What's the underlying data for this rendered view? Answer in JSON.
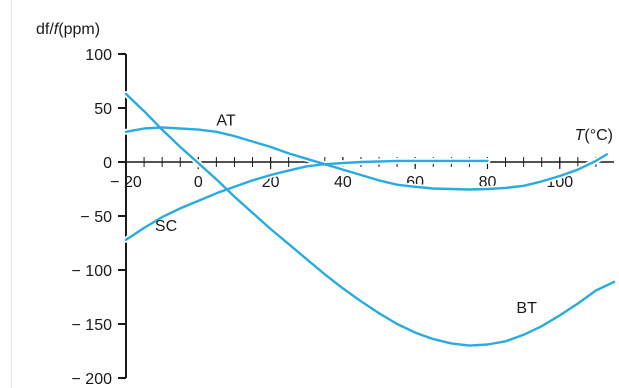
{
  "chart_data": {
    "type": "line",
    "xlabel_var": "T",
    "xlabel_unit": "(°C)",
    "ylabel_var": "df/f",
    "ylabel_unit": "(ppm)",
    "xlim": [
      -20,
      115
    ],
    "ylim": [
      -200,
      100
    ],
    "x_tick_labels": [
      {
        "value": -20,
        "label": "− 20"
      },
      {
        "value": 0,
        "label": "0"
      },
      {
        "value": 20,
        "label": "20"
      },
      {
        "value": 40,
        "label": "40"
      },
      {
        "value": 60,
        "label": "60"
      },
      {
        "value": 80,
        "label": "80"
      },
      {
        "value": 100,
        "label": "100"
      }
    ],
    "x_minor_tick_step": 5,
    "y_tick_labels": [
      {
        "value": 100,
        "label": "100"
      },
      {
        "value": 50,
        "label": "50"
      },
      {
        "value": 0,
        "label": "0"
      },
      {
        "value": -50,
        "label": "− 50"
      },
      {
        "value": -100,
        "label": "− 100"
      },
      {
        "value": -150,
        "label": "− 150"
      },
      {
        "value": -200,
        "label": "− 200"
      }
    ],
    "grid": false,
    "line_color": "#29abe2",
    "series": [
      {
        "name": "AT",
        "label_x": 5,
        "label_y": 34,
        "points": [
          [
            -20,
            28
          ],
          [
            -15,
            31
          ],
          [
            -10,
            32
          ],
          [
            -5,
            31
          ],
          [
            0,
            30
          ],
          [
            5,
            28
          ],
          [
            10,
            24
          ],
          [
            15,
            19
          ],
          [
            20,
            14
          ],
          [
            25,
            8
          ],
          [
            30,
            3
          ],
          [
            35,
            -2
          ],
          [
            40,
            -7
          ],
          [
            45,
            -12
          ],
          [
            50,
            -17
          ],
          [
            55,
            -21
          ],
          [
            60,
            -23
          ],
          [
            65,
            -24.5
          ],
          [
            70,
            -25
          ],
          [
            75,
            -25.5
          ],
          [
            80,
            -25
          ],
          [
            85,
            -24
          ],
          [
            90,
            -22
          ],
          [
            95,
            -18
          ],
          [
            100,
            -13
          ],
          [
            105,
            -7
          ],
          [
            110,
            1
          ],
          [
            113,
            7
          ]
        ]
      },
      {
        "name": "BT",
        "label_x": 88,
        "label_y": -140,
        "points": [
          [
            -20,
            63
          ],
          [
            -15,
            47
          ],
          [
            -10,
            30
          ],
          [
            -5,
            14
          ],
          [
            0,
            -1
          ],
          [
            5,
            -16
          ],
          [
            10,
            -32
          ],
          [
            15,
            -47
          ],
          [
            20,
            -62
          ],
          [
            25,
            -76
          ],
          [
            30,
            -90
          ],
          [
            35,
            -104
          ],
          [
            40,
            -117
          ],
          [
            45,
            -129
          ],
          [
            50,
            -140
          ],
          [
            55,
            -150
          ],
          [
            60,
            -158
          ],
          [
            65,
            -164
          ],
          [
            70,
            -168
          ],
          [
            75,
            -170
          ],
          [
            80,
            -169
          ],
          [
            85,
            -166
          ],
          [
            90,
            -160
          ],
          [
            95,
            -152
          ],
          [
            100,
            -142
          ],
          [
            105,
            -131
          ],
          [
            110,
            -119
          ],
          [
            115,
            -111
          ]
        ]
      },
      {
        "name": "SC",
        "label_x": -12,
        "label_y": -64,
        "points": [
          [
            -20,
            -72
          ],
          [
            -15,
            -61
          ],
          [
            -10,
            -51
          ],
          [
            -5,
            -43
          ],
          [
            0,
            -36
          ],
          [
            5,
            -29
          ],
          [
            10,
            -23
          ],
          [
            15,
            -17
          ],
          [
            20,
            -12
          ],
          [
            25,
            -8
          ],
          [
            30,
            -4
          ],
          [
            35,
            -2
          ],
          [
            40,
            -1
          ],
          [
            45,
            0
          ],
          [
            50,
            0.5
          ],
          [
            55,
            1
          ],
          [
            60,
            1
          ],
          [
            65,
            1
          ],
          [
            70,
            1
          ],
          [
            75,
            1
          ],
          [
            80,
            1
          ]
        ]
      }
    ]
  }
}
